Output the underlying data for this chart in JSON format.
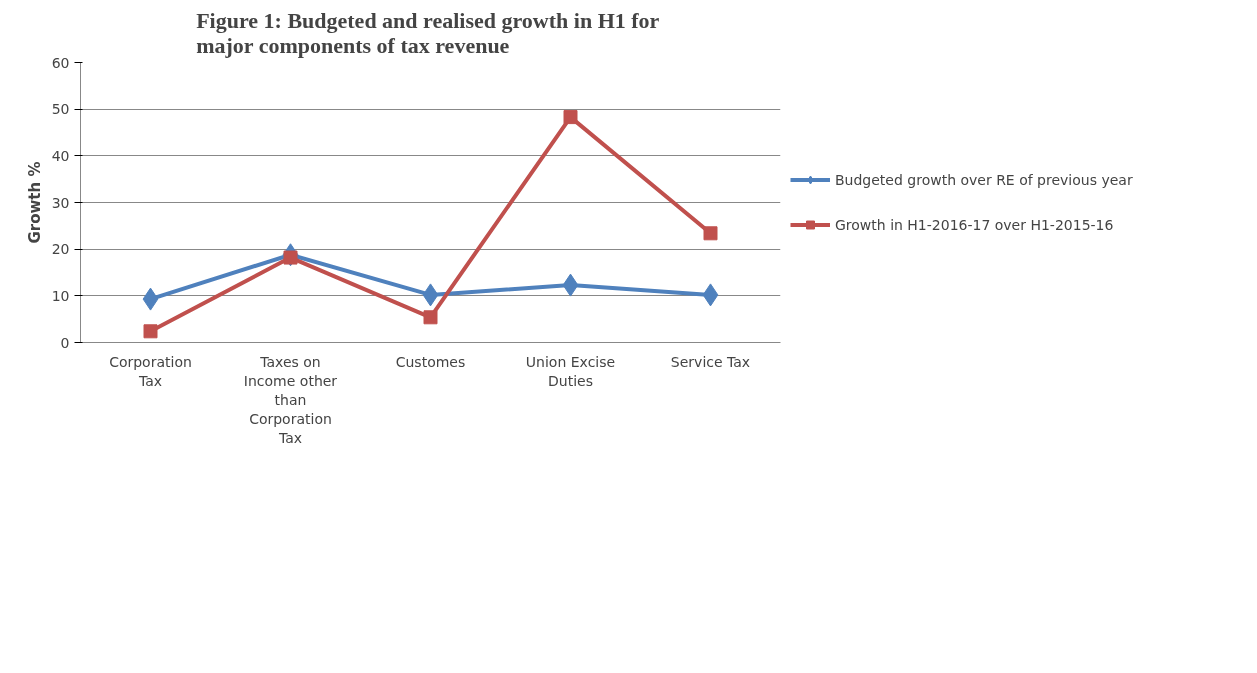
{
  "chart_data": {
    "type": "line",
    "title": "Figure 1: Budgeted and realised growth  in H1 for\nmajor  components  of tax revenue",
    "ylabel": "Growth %",
    "categories": [
      "Corporation Tax",
      "Taxes on Income other than Corporation Tax",
      "Customes",
      "Union Excise Duties",
      "Service Tax"
    ],
    "series": [
      {
        "name": "Budgeted growth over RE of previous year",
        "color": "#4f81bd",
        "marker": "diamond",
        "values": [
          9.3,
          18.8,
          10.2,
          12.3,
          10.2
        ]
      },
      {
        "name": "Growth in H1-2016-17 over H1-2015-16",
        "color": "#c0504d",
        "marker": "square",
        "values": [
          2.4,
          18.2,
          5.4,
          48.3,
          23.4
        ]
      }
    ],
    "ylim": [
      0,
      60
    ],
    "yticks": [
      0,
      10,
      20,
      30,
      40,
      50,
      60
    ],
    "grid": "y",
    "legend": "right",
    "line_style": "solid"
  }
}
